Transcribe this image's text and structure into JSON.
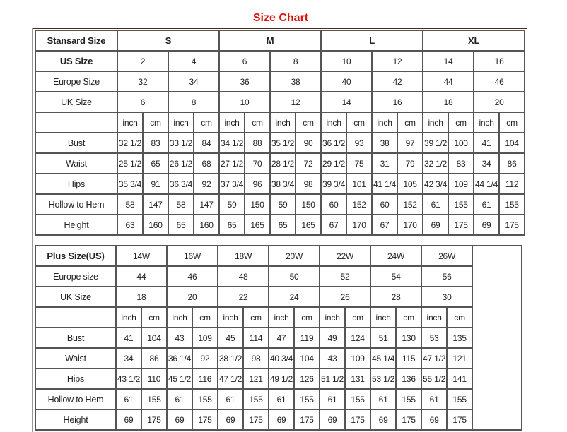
{
  "title": "Size Chart",
  "standard": {
    "header_label": "Stansard Size",
    "groups": [
      "S",
      "M",
      "L",
      "XL"
    ],
    "size_rows": [
      {
        "label": "US Size",
        "values": [
          "2",
          "4",
          "6",
          "8",
          "10",
          "12",
          "14",
          "16"
        ]
      },
      {
        "label": "Europe Size",
        "values": [
          "32",
          "34",
          "36",
          "38",
          "40",
          "42",
          "44",
          "46"
        ]
      },
      {
        "label": "UK Size",
        "values": [
          "6",
          "8",
          "10",
          "12",
          "14",
          "16",
          "18",
          "20"
        ]
      }
    ],
    "units": [
      "inch",
      "cm"
    ],
    "measure_rows": [
      {
        "label": "Bust",
        "values": [
          "32 1/2",
          "83",
          "33 1/2",
          "84",
          "34 1/2",
          "88",
          "35 1/2",
          "90",
          "36 1/2",
          "93",
          "38",
          "97",
          "39 1/2",
          "100",
          "41",
          "104"
        ]
      },
      {
        "label": "Waist",
        "values": [
          "25 1/2",
          "65",
          "26 1/2",
          "68",
          "27 1/2",
          "70",
          "28 1/2",
          "72",
          "29 1/2",
          "75",
          "31",
          "79",
          "32 1/2",
          "83",
          "34",
          "86"
        ]
      },
      {
        "label": "Hips",
        "values": [
          "35 3/4",
          "91",
          "36 3/4",
          "92",
          "37 3/4",
          "96",
          "38 3/4",
          "98",
          "39 3/4",
          "101",
          "41 1/4",
          "105",
          "42 3/4",
          "109",
          "44 1/4",
          "112"
        ]
      },
      {
        "label": "Hollow to Hem",
        "values": [
          "58",
          "147",
          "58",
          "147",
          "59",
          "150",
          "59",
          "150",
          "60",
          "152",
          "60",
          "152",
          "61",
          "155",
          "61",
          "155"
        ]
      },
      {
        "label": "Height",
        "values": [
          "63",
          "160",
          "65",
          "160",
          "65",
          "165",
          "65",
          "165",
          "67",
          "170",
          "67",
          "170",
          "69",
          "175",
          "69",
          "175"
        ]
      }
    ]
  },
  "plus": {
    "header_label": "Plus Size(US)",
    "sizes": [
      "14W",
      "16W",
      "18W",
      "20W",
      "22W",
      "24W",
      "26W"
    ],
    "size_rows": [
      {
        "label": "Europe size",
        "values": [
          "44",
          "46",
          "48",
          "50",
          "52",
          "54",
          "56"
        ]
      },
      {
        "label": "UK Size",
        "values": [
          "18",
          "20",
          "22",
          "24",
          "26",
          "28",
          "30"
        ]
      }
    ],
    "units": [
      "inch",
      "cm"
    ],
    "measure_rows": [
      {
        "label": "Bust",
        "values": [
          "41",
          "104",
          "43",
          "109",
          "45",
          "114",
          "47",
          "119",
          "49",
          "124",
          "51",
          "130",
          "53",
          "135"
        ]
      },
      {
        "label": "Waist",
        "values": [
          "34",
          "86",
          "36 1/4",
          "92",
          "38 1/2",
          "98",
          "40 3/4",
          "104",
          "43",
          "109",
          "45 1/4",
          "115",
          "47 1/2",
          "121"
        ]
      },
      {
        "label": "Hips",
        "values": [
          "43 1/2",
          "110",
          "45 1/2",
          "116",
          "47 1/2",
          "121",
          "49 1/2",
          "126",
          "51 1/2",
          "131",
          "53 1/2",
          "136",
          "55 1/2",
          "141"
        ]
      },
      {
        "label": "Hollow to Hem",
        "values": [
          "61",
          "155",
          "61",
          "155",
          "61",
          "155",
          "61",
          "155",
          "61",
          "155",
          "61",
          "155",
          "61",
          "155"
        ]
      },
      {
        "label": "Height",
        "values": [
          "69",
          "175",
          "69",
          "175",
          "69",
          "175",
          "69",
          "175",
          "69",
          "175",
          "69",
          "175",
          "69",
          "175"
        ]
      }
    ]
  }
}
